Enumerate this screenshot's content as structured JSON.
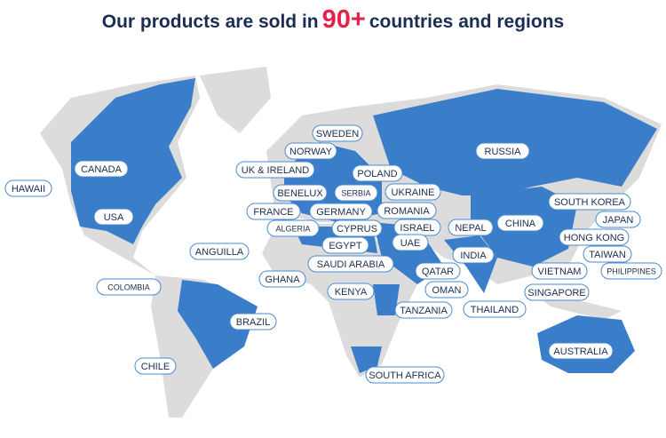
{
  "header": {
    "title_start": "Our products are sold in",
    "title_highlight": "90+",
    "title_end": "countries and regions"
  },
  "labels": [
    "SWEDEN",
    "NORWAY",
    "UK & IRELAND",
    "POLAND",
    "BENELUX",
    "SERBIA",
    "UKRAINE",
    "FRANCE",
    "GERMANY",
    "ROMANIA",
    "ALGERIA",
    "CYPRUS",
    "ISRAEL",
    "EGYPT",
    "UAE",
    "NEPAL",
    "CHINA",
    "INDIA",
    "SAUDI ARABIA",
    "QATAR",
    "OMAN",
    "KENYA",
    "GHANA",
    "TANZANIA",
    "THAILAND",
    "SOUTH AFRICA",
    "ANGUILLA",
    "COLOMBIA",
    "BRAZIL",
    "CHILE",
    "HAWAII",
    "CANADA",
    "USA",
    "RUSSIA",
    "SOUTH KOREA",
    "JAPAN",
    "HONG KONG",
    "TAIWAN",
    "VIETNAM",
    "PHILIPPINES",
    "SINGAPORE",
    "AUSTRALIA"
  ]
}
